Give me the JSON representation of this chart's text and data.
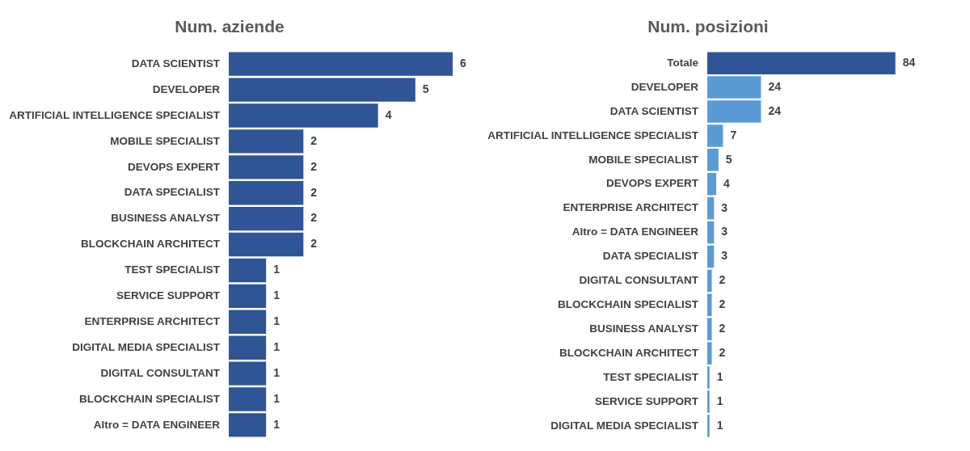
{
  "chart_data": [
    {
      "type": "bar",
      "orientation": "horizontal",
      "title": "Num. aziende",
      "data_labels": true,
      "categories": [
        "DATA SCIENTIST",
        "DEVELOPER",
        "ARTIFICIAL INTELLIGENCE SPECIALIST",
        "MOBILE SPECIALIST",
        "DEVOPS EXPERT",
        "DATA SPECIALIST",
        "BUSINESS ANALYST",
        "BLOCKCHAIN ARCHITECT",
        "TEST SPECIALIST",
        "SERVICE SUPPORT",
        "ENTERPRISE ARCHITECT",
        "DIGITAL MEDIA SPECIALIST",
        "DIGITAL CONSULTANT",
        "BLOCKCHAIN SPECIALIST",
        "Altro = DATA ENGINEER"
      ],
      "values": [
        6,
        5,
        4,
        2,
        2,
        2,
        2,
        2,
        1,
        1,
        1,
        1,
        1,
        1,
        1
      ],
      "color": "#2f5597"
    },
    {
      "type": "bar",
      "orientation": "horizontal",
      "title": "Num. posizioni",
      "data_labels": true,
      "categories": [
        "Totale",
        "DEVELOPER",
        "DATA SCIENTIST",
        "ARTIFICIAL INTELLIGENCE SPECIALIST",
        "MOBILE SPECIALIST",
        "DEVOPS EXPERT",
        "ENTERPRISE ARCHITECT",
        "Altro = DATA ENGINEER",
        "DATA SPECIALIST",
        "DIGITAL CONSULTANT",
        "BLOCKCHAIN SPECIALIST",
        "BUSINESS ANALYST",
        "BLOCKCHAIN ARCHITECT",
        "TEST SPECIALIST",
        "SERVICE SUPPORT",
        "DIGITAL MEDIA SPECIALIST"
      ],
      "values": [
        84,
        24,
        24,
        7,
        5,
        4,
        3,
        3,
        3,
        2,
        2,
        2,
        2,
        1,
        1,
        1
      ],
      "colors": [
        "#2f5597",
        "#5b9bd5",
        "#5b9bd5",
        "#5b9bd5",
        "#5b9bd5",
        "#5b9bd5",
        "#5b9bd5",
        "#5b9bd5",
        "#5b9bd5",
        "#5b9bd5",
        "#5b9bd5",
        "#5b9bd5",
        "#5b9bd5",
        "#5b9bd5",
        "#5b9bd5",
        "#5b9bd5"
      ]
    }
  ]
}
